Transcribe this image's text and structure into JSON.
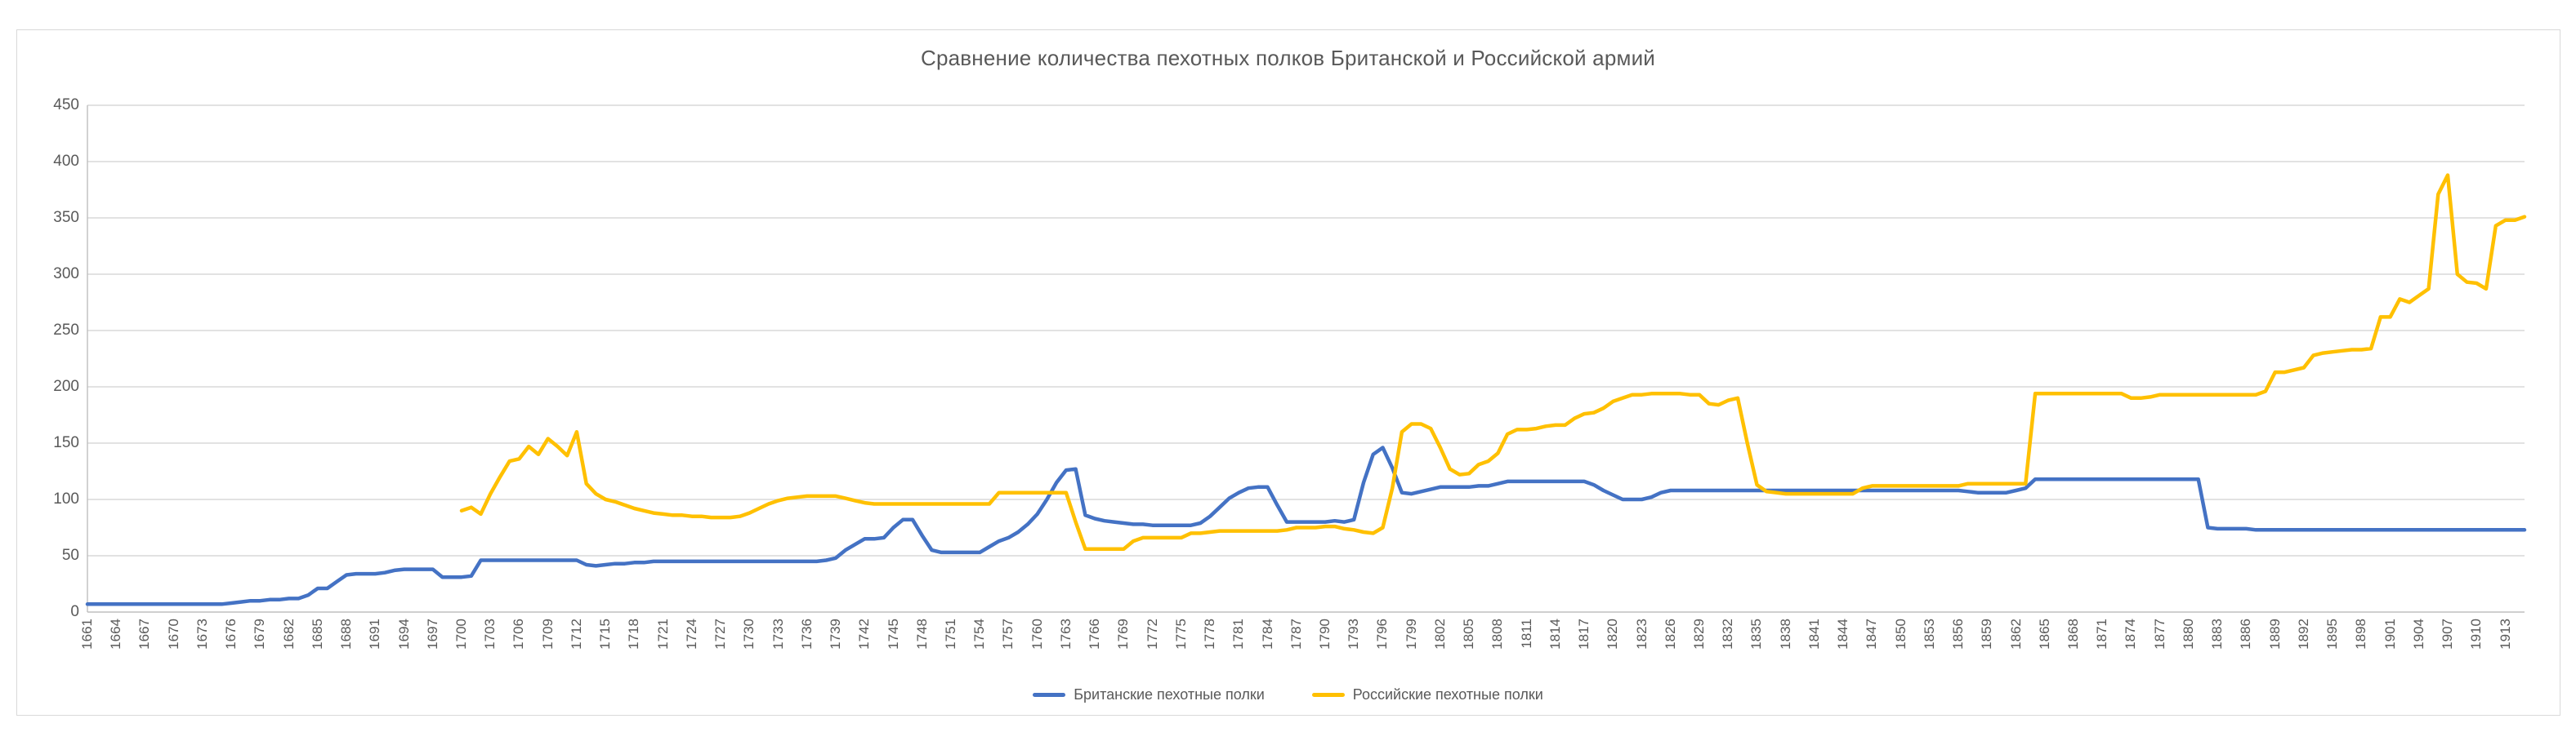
{
  "title": "Сравнение количества пехотных полков Британской и Российской армий",
  "colors": {
    "british_line": "#4472C4",
    "russian_line": "#FFC000",
    "gridline": "#D9D9D9",
    "axis_line": "#BFBFBF",
    "text": "#595959"
  },
  "legend": {
    "items": [
      {
        "label": "Британские пехотные полки",
        "color": "#4472C4"
      },
      {
        "label": "Российские пехотные полки",
        "color": "#FFC000"
      }
    ]
  },
  "chart_data": {
    "type": "line",
    "title": "Сравнение количества пехотных полков Британской и Российской армий",
    "xlabel": "",
    "ylabel": "",
    "ylim": [
      0,
      450
    ],
    "grid": true,
    "legend_position": "bottom",
    "y_ticks": [
      0,
      50,
      100,
      150,
      200,
      250,
      300,
      350,
      400,
      450
    ],
    "x_start": 1661,
    "x_end": 1915,
    "x_tick_labels": [
      "1661",
      "1664",
      "1667",
      "1670",
      "1673",
      "1676",
      "1679",
      "1682",
      "1685",
      "1688",
      "1691",
      "1694",
      "1697",
      "1700",
      "1703",
      "1706",
      "1709",
      "1712",
      "1715",
      "1718",
      "1721",
      "1724",
      "1727",
      "1730",
      "1733",
      "1736",
      "1739",
      "1742",
      "1745",
      "1748",
      "1751",
      "1754",
      "1757",
      "1760",
      "1763",
      "1766",
      "1769",
      "1772",
      "1775",
      "1778",
      "1781",
      "1784",
      "1787",
      "1790",
      "1793",
      "1796",
      "1799",
      "1802",
      "1805",
      "1808",
      "1811",
      "1814",
      "1817",
      "1820",
      "1823",
      "1826",
      "1829",
      "1832",
      "1835",
      "1838",
      "1841",
      "1844",
      "1847",
      "1850",
      "1853",
      "1856",
      "1859",
      "1862",
      "1865",
      "1868",
      "1871",
      "1874",
      "1877",
      "1880",
      "1883",
      "1886",
      "1889",
      "1892",
      "1895",
      "1898",
      "1901",
      "1904",
      "1907",
      "1910",
      "1913"
    ],
    "series": [
      {
        "name": "Британские пехотные полки",
        "color": "#4472C4",
        "start_year": 1661,
        "values": [
          7,
          7,
          7,
          7,
          7,
          7,
          7,
          7,
          7,
          7,
          7,
          7,
          7,
          7,
          7,
          8,
          9,
          10,
          10,
          11,
          11,
          12,
          12,
          15,
          21,
          21,
          27,
          33,
          34,
          34,
          34,
          35,
          37,
          38,
          38,
          38,
          38,
          31,
          31,
          31,
          32,
          46,
          46,
          46,
          46,
          46,
          46,
          46,
          46,
          46,
          46,
          46,
          42,
          41,
          42,
          43,
          43,
          44,
          44,
          45,
          45,
          45,
          45,
          45,
          45,
          45,
          45,
          45,
          45,
          45,
          45,
          45,
          45,
          45,
          45,
          45,
          45,
          46,
          48,
          55,
          60,
          65,
          65,
          66,
          75,
          82,
          82,
          68,
          55,
          53,
          53,
          53,
          53,
          53,
          58,
          63,
          66,
          71,
          78,
          87,
          100,
          115,
          126,
          127,
          86,
          83,
          81,
          80,
          79,
          78,
          78,
          77,
          77,
          77,
          77,
          77,
          79,
          85,
          93,
          101,
          106,
          110,
          111,
          111,
          95,
          80,
          80,
          80,
          80,
          80,
          81,
          80,
          82,
          115,
          140,
          146,
          128,
          106,
          105,
          107,
          109,
          111,
          111,
          111,
          111,
          112,
          112,
          114,
          116,
          116,
          116,
          116,
          116,
          116,
          116,
          116,
          116,
          113,
          108,
          104,
          100,
          100,
          100,
          102,
          106,
          108,
          108,
          108,
          108,
          108,
          108,
          108,
          108,
          108,
          108,
          108,
          108,
          108,
          108,
          108,
          108,
          108,
          108,
          108,
          108,
          108,
          108,
          108,
          108,
          108,
          108,
          108,
          108,
          108,
          108,
          108,
          107,
          106,
          106,
          106,
          106,
          108,
          110,
          118,
          118,
          118,
          118,
          118,
          118,
          118,
          118,
          118,
          118,
          118,
          118,
          118,
          118,
          118,
          118,
          118,
          118,
          75,
          74,
          74,
          74,
          74,
          73,
          73,
          73,
          73,
          73,
          73,
          73,
          73,
          73,
          73,
          73,
          73,
          73,
          73,
          73,
          73,
          73,
          73,
          73,
          73,
          73,
          73,
          73,
          73,
          73,
          73,
          73,
          73,
          73
        ]
      },
      {
        "name": "Российские пехотные полки",
        "color": "#FFC000",
        "start_year": 1700,
        "values": [
          90,
          93,
          87,
          105,
          120,
          134,
          136,
          147,
          140,
          154,
          147,
          139,
          160,
          114,
          105,
          100,
          98,
          95,
          92,
          90,
          88,
          87,
          86,
          86,
          85,
          85,
          84,
          84,
          84,
          85,
          88,
          92,
          96,
          99,
          101,
          102,
          103,
          103,
          103,
          103,
          101,
          99,
          97,
          96,
          96,
          96,
          96,
          96,
          96,
          96,
          96,
          96,
          96,
          96,
          96,
          96,
          106,
          106,
          106,
          106,
          106,
          106,
          106,
          106,
          80,
          56,
          56,
          56,
          56,
          56,
          63,
          66,
          66,
          66,
          66,
          66,
          70,
          70,
          71,
          72,
          72,
          72,
          72,
          72,
          72,
          72,
          73,
          75,
          75,
          75,
          76,
          76,
          74,
          73,
          71,
          70,
          75,
          110,
          160,
          167,
          167,
          163,
          146,
          127,
          122,
          123,
          131,
          134,
          141,
          158,
          162,
          162,
          163,
          165,
          166,
          166,
          172,
          176,
          177,
          181,
          187,
          190,
          193,
          193,
          194,
          194,
          194,
          194,
          193,
          193,
          185,
          184,
          188,
          190,
          150,
          113,
          107,
          106,
          105,
          105,
          105,
          105,
          105,
          105,
          105,
          105,
          110,
          112,
          112,
          112,
          112,
          112,
          112,
          112,
          112,
          112,
          112,
          114,
          114,
          114,
          114,
          114,
          114,
          114,
          194,
          194,
          194,
          194,
          194,
          194,
          194,
          194,
          194,
          194,
          190,
          190,
          191,
          193,
          193,
          193,
          193,
          193,
          193,
          193,
          193,
          193,
          193,
          193,
          196,
          213,
          213,
          215,
          217,
          228,
          230,
          231,
          232,
          233,
          233,
          234,
          262,
          262,
          278,
          275,
          281,
          287,
          371,
          388,
          300,
          293,
          292,
          287,
          343,
          348,
          348,
          351
        ]
      }
    ]
  }
}
